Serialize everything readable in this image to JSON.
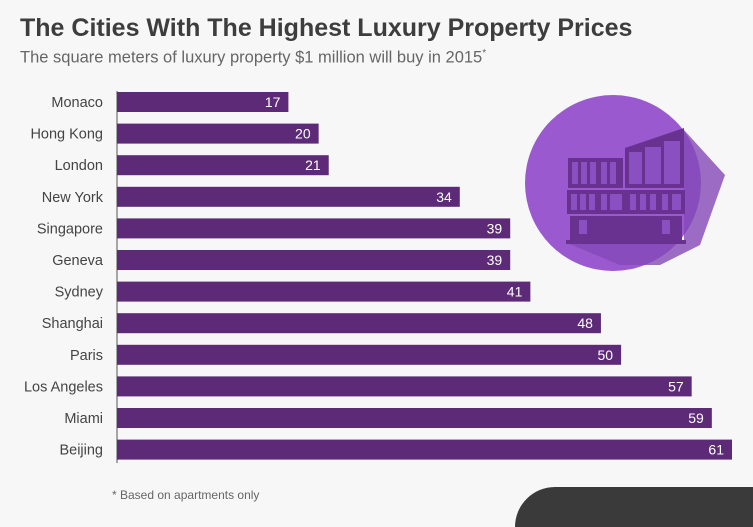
{
  "header": {
    "title": "The Cities With The Highest Luxury Property Prices",
    "subtitle": "The square meters of luxury property $1 million will buy in 2015",
    "subtitle_marker": "*"
  },
  "footnote": "* Based on apartments only",
  "colors": {
    "bar": "#5c2a77",
    "circle": "#9a59cf",
    "building": "#6a3290",
    "label": "#444444"
  },
  "icon": "building-icon",
  "chart_data": {
    "type": "bar",
    "orientation": "horizontal",
    "title": "The Cities With The Highest Luxury Property Prices",
    "subtitle": "The square meters of luxury property $1 million will buy in 2015*",
    "xlabel": "",
    "ylabel": "",
    "xlim": [
      0,
      61
    ],
    "grid": false,
    "categories": [
      "Monaco",
      "Hong Kong",
      "London",
      "New York",
      "Singapore",
      "Geneva",
      "Sydney",
      "Shanghai",
      "Paris",
      "Los Angeles",
      "Miami",
      "Beijing"
    ],
    "values": [
      17,
      20,
      21,
      34,
      39,
      39,
      41,
      48,
      50,
      57,
      59,
      61
    ]
  }
}
